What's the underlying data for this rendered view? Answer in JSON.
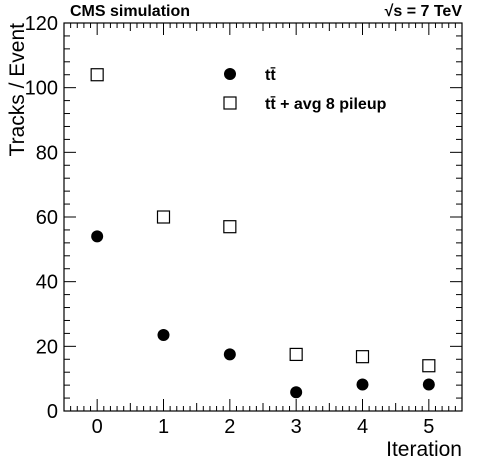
{
  "header": {
    "left_label": "CMS simulation",
    "right_label": "√s = 7 TeV"
  },
  "chart_data": {
    "type": "scatter",
    "xlabel": "Iteration",
    "ylabel": "Tracks / Event",
    "xlim": [
      -0.5,
      5.5
    ],
    "ylim": [
      0,
      120
    ],
    "xticks": [
      0,
      1,
      2,
      3,
      4,
      5
    ],
    "yticks": [
      0,
      20,
      40,
      60,
      80,
      100,
      120
    ],
    "grid": false,
    "legend_position": "top-right",
    "series": [
      {
        "name": "tt̄",
        "marker": "filled-circle",
        "color": "#000000",
        "x": [
          0,
          1,
          2,
          3,
          4,
          5
        ],
        "y": [
          54,
          23.5,
          17.5,
          5.8,
          8.2,
          8.2
        ]
      },
      {
        "name": "tt̄ + avg 8 pileup",
        "marker": "open-square",
        "color": "#000000",
        "x": [
          0,
          1,
          2,
          3,
          4,
          5
        ],
        "y": [
          104,
          60,
          57,
          17.5,
          16.8,
          14
        ]
      }
    ]
  }
}
